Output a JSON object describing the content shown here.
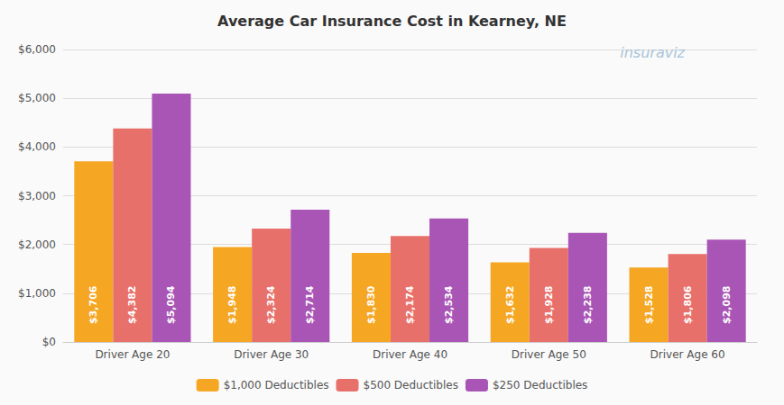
{
  "chart_data": {
    "type": "bar",
    "title": "Average Car Insurance Cost in Kearney, NE",
    "categories": [
      "Driver Age 20",
      "Driver Age 30",
      "Driver Age 40",
      "Driver Age 50",
      "Driver Age 60"
    ],
    "series": [
      {
        "name": "$1,000 Deductibles",
        "color": "#F5A623",
        "values": [
          3706,
          1948,
          1830,
          1632,
          1528
        ],
        "value_labels": [
          "$3,706",
          "$1,948",
          "$1,830",
          "$1,632",
          "$1,528"
        ]
      },
      {
        "name": "$500 Deductibles",
        "color": "#E8706A",
        "values": [
          4382,
          2324,
          2174,
          1928,
          1806
        ],
        "value_labels": [
          "$4,382",
          "$2,324",
          "$2,174",
          "$1,928",
          "$1,806"
        ]
      },
      {
        "name": "$250 Deductibles",
        "color": "#A855B5",
        "values": [
          5094,
          2714,
          2534,
          2238,
          2098
        ],
        "value_labels": [
          "$5,094",
          "$2,714",
          "$2,534",
          "$2,238",
          "$2,098"
        ]
      }
    ],
    "ylim": [
      0,
      6000
    ],
    "yticks": [
      {
        "value": 0,
        "label": "$0"
      },
      {
        "value": 1000,
        "label": "$1,000"
      },
      {
        "value": 2000,
        "label": "$2,000"
      },
      {
        "value": 3000,
        "label": "$3,000"
      },
      {
        "value": 4000,
        "label": "$4,000"
      },
      {
        "value": 5000,
        "label": "$5,000"
      },
      {
        "value": 6000,
        "label": "$6,000"
      }
    ],
    "grid": true,
    "legend": "bottom",
    "data_labels": true,
    "annotations": [
      "insuraviz"
    ]
  }
}
